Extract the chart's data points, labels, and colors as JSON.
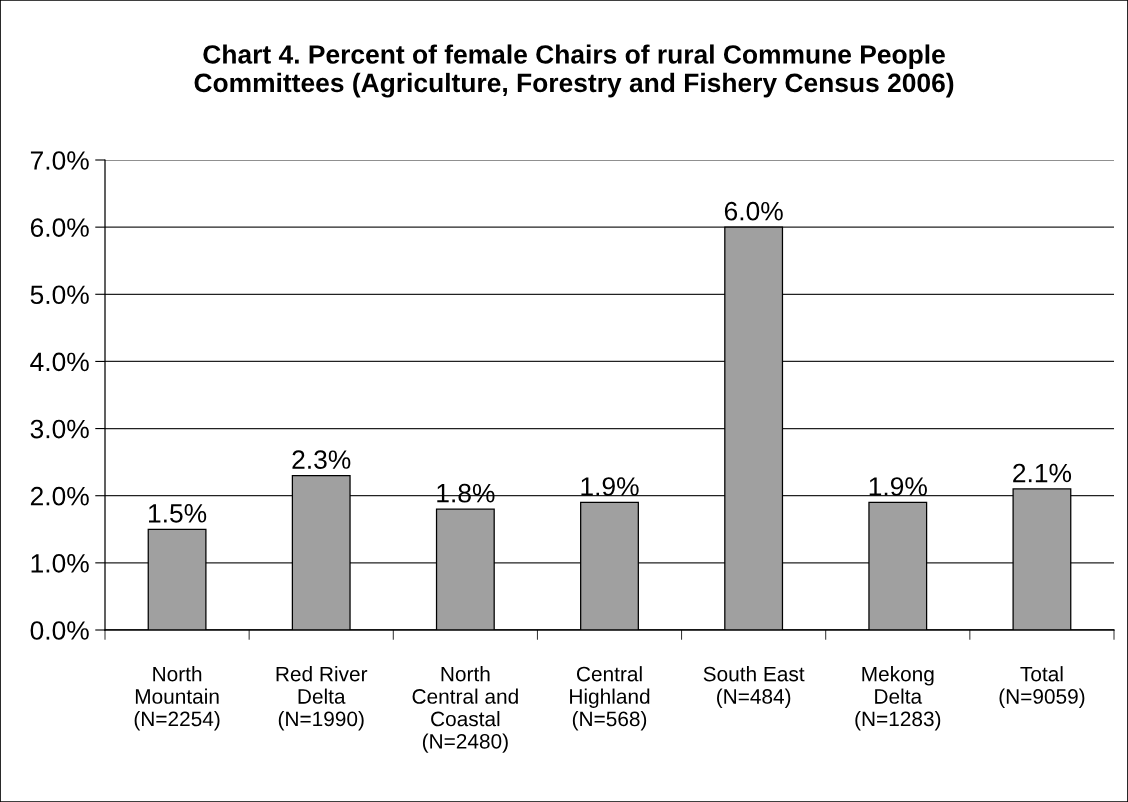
{
  "chart_data": {
    "type": "bar",
    "title": "Chart 4. Percent of female Chairs of rural Commune People\nCommittees (Agriculture, Forestry and Fishery Census 2006)",
    "categories": [
      "North\nMountain\n(N=2254)",
      "Red River\nDelta\n(N=1990)",
      "North\nCentral and\nCoastal\n(N=2480)",
      "Central\nHighland\n(N=568)",
      "South East\n(N=484)",
      "Mekong\nDelta\n(N=1283)",
      "Total\n(N=9059)"
    ],
    "values": [
      1.5,
      2.3,
      1.8,
      1.9,
      6.0,
      1.9,
      2.1
    ],
    "value_labels": [
      "1.5%",
      "2.3%",
      "1.8%",
      "1.9%",
      "6.0%",
      "1.9%",
      "2.1%"
    ],
    "color": "#a0a0a0",
    "ylim": [
      0,
      7
    ],
    "yticks": [
      {
        "value": 0,
        "label": "0.0%"
      },
      {
        "value": 1,
        "label": "1.0%"
      },
      {
        "value": 2,
        "label": "2.0%"
      },
      {
        "value": 3,
        "label": "3.0%"
      },
      {
        "value": 4,
        "label": "4.0%"
      },
      {
        "value": 5,
        "label": "5.0%"
      },
      {
        "value": 6,
        "label": "6.0%"
      },
      {
        "value": 7,
        "label": "7.0%"
      }
    ],
    "grid": "y"
  }
}
